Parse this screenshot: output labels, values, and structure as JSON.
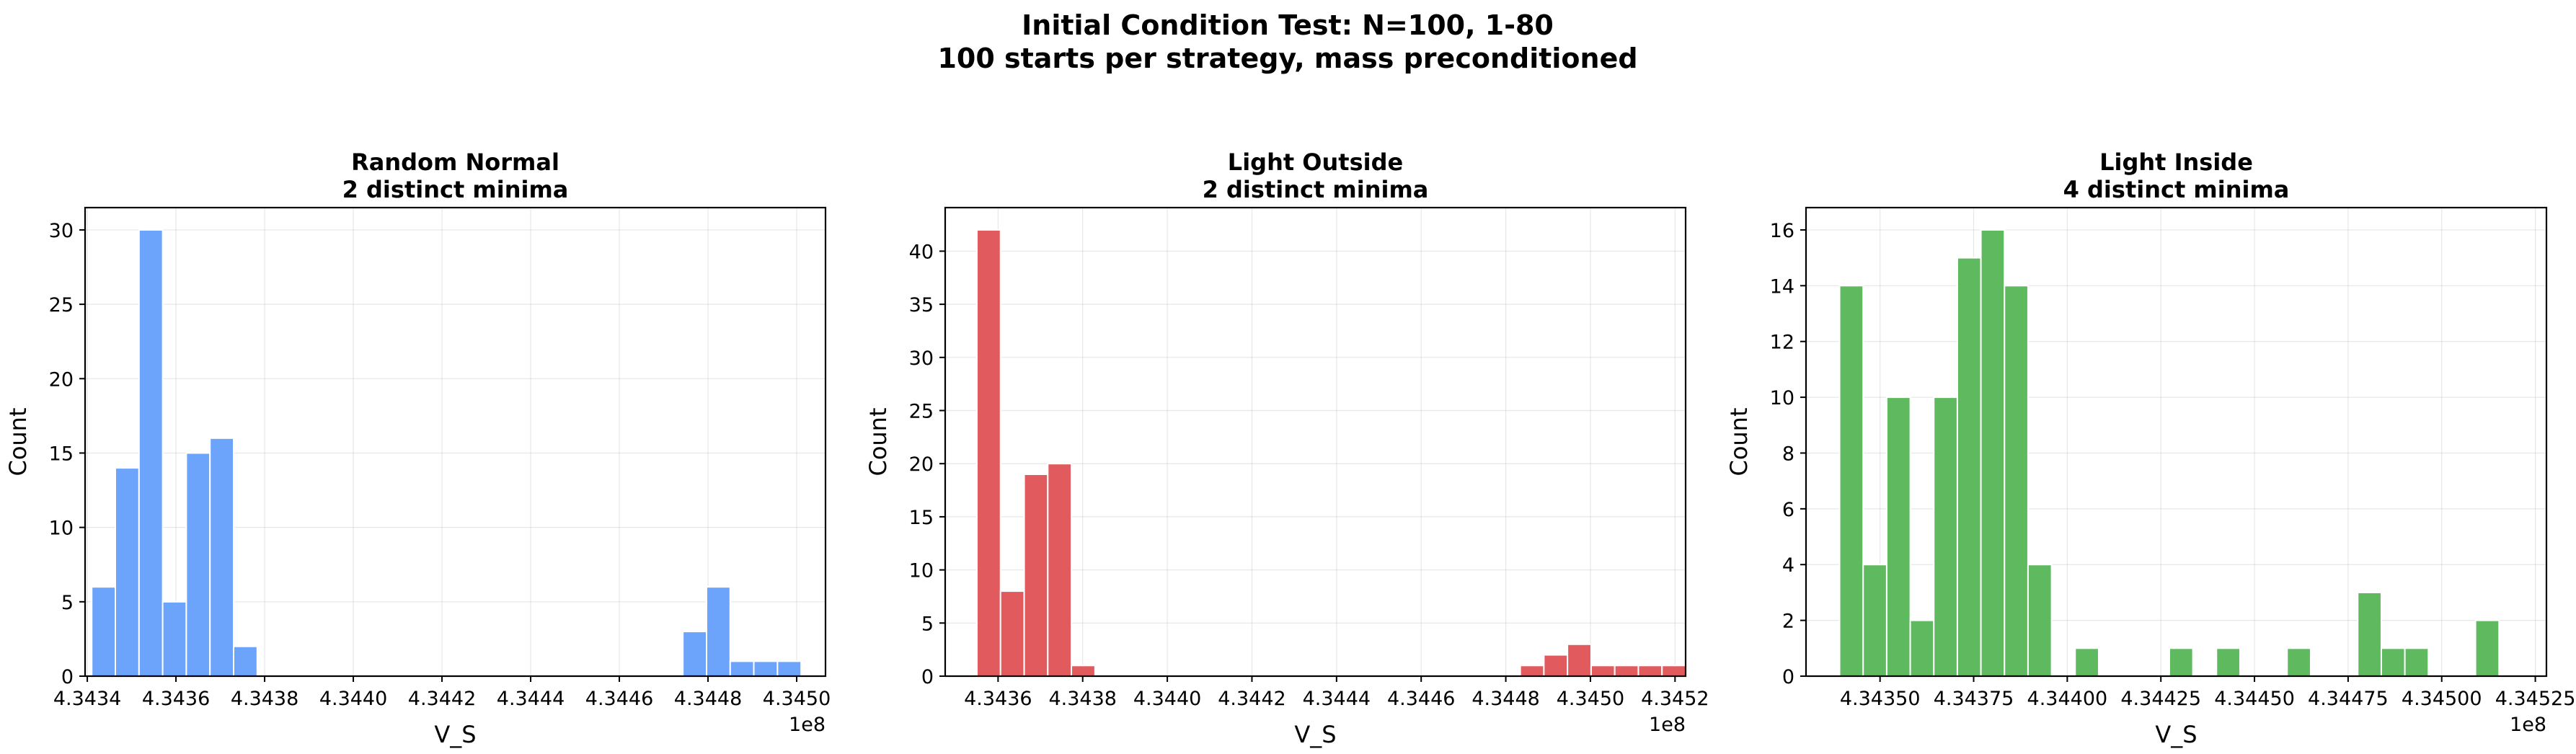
{
  "figure": {
    "title_line1": "Initial Condition Test: N=100, 1-80",
    "title_line2": "100 starts per strategy, mass preconditioned"
  },
  "chart_data": [
    {
      "type": "bar",
      "title_line1": "Random Normal",
      "title_line2": "2 distinct minima",
      "xlabel": "V_S",
      "ylabel": "Count",
      "color": "#6ca3fb",
      "x_offset_label": "1e8",
      "xlim": [
        4.343395,
        4.345065
      ],
      "ylim": [
        0,
        31.5
      ],
      "xticks": [
        4.3434,
        4.3436,
        4.3438,
        4.344,
        4.3442,
        4.3444,
        4.3446,
        4.3448,
        4.345
      ],
      "xtick_labels": [
        "4.3434",
        "4.3436",
        "4.3438",
        "4.3440",
        "4.3442",
        "4.3444",
        "4.3446",
        "4.3448",
        "4.3450"
      ],
      "yticks": [
        0,
        5,
        10,
        15,
        20,
        25,
        30
      ],
      "ytick_labels": [
        "0",
        "5",
        "10",
        "15",
        "20",
        "25",
        "30"
      ],
      "bin_edges": [
        4.34341,
        4.3434633,
        4.3435167,
        4.34357,
        4.3436233,
        4.3436767,
        4.34373,
        4.3437833,
        4.3438367,
        4.34389,
        4.3439433,
        4.3439967,
        4.34405,
        4.3441033,
        4.3441567,
        4.34421,
        4.3442633,
        4.3443167,
        4.34437,
        4.3444233,
        4.3444767,
        4.34453,
        4.3445833,
        4.3446367,
        4.34469,
        4.3447433,
        4.3447967,
        4.34485,
        4.3449033,
        4.3449567,
        4.34501
      ],
      "counts": [
        6,
        14,
        30,
        5,
        15,
        16,
        2,
        0,
        0,
        0,
        0,
        0,
        0,
        0,
        0,
        0,
        0,
        0,
        0,
        0,
        0,
        0,
        0,
        0,
        0,
        3,
        6,
        1,
        1,
        1
      ]
    },
    {
      "type": "bar",
      "title_line1": "Light Outside",
      "title_line2": "2 distinct minima",
      "xlabel": "V_S",
      "ylabel": "Count",
      "color": "#e05a5e",
      "x_offset_label": "1e8",
      "xlim": [
        4.343475,
        4.345225
      ],
      "ylim": [
        0,
        44.1
      ],
      "xticks": [
        4.3436,
        4.3438,
        4.344,
        4.3442,
        4.3444,
        4.3446,
        4.3448,
        4.345,
        4.3452
      ],
      "xtick_labels": [
        "4.3436",
        "4.3438",
        "4.3440",
        "4.3442",
        "4.3444",
        "4.3446",
        "4.3448",
        "4.3450",
        "4.3452"
      ],
      "yticks": [
        0,
        5,
        10,
        15,
        20,
        25,
        30,
        35,
        40
      ],
      "ytick_labels": [
        "0",
        "5",
        "10",
        "15",
        "20",
        "25",
        "30",
        "35",
        "40"
      ],
      "bin_edges": [
        4.34355,
        4.3436058,
        4.3436617,
        4.3437175,
        4.3437733,
        4.3438292,
        4.343885,
        4.3439408,
        4.3439967,
        4.3440525,
        4.3441083,
        4.3441642,
        4.34422,
        4.3442758,
        4.3443317,
        4.3443875,
        4.3444433,
        4.3444992,
        4.344555,
        4.3446108,
        4.3446667,
        4.3447225,
        4.3447783,
        4.3448342,
        4.34489,
        4.3449458,
        4.3450017,
        4.3450575,
        4.3451133,
        4.3451692,
        4.345225
      ],
      "counts": [
        42,
        8,
        19,
        20,
        1,
        0,
        0,
        0,
        0,
        0,
        0,
        0,
        0,
        0,
        0,
        0,
        0,
        0,
        0,
        0,
        0,
        0,
        0,
        1,
        2,
        3,
        1,
        1,
        1,
        1
      ]
    },
    {
      "type": "bar",
      "title_line1": "Light Inside",
      "title_line2": "4 distinct minima",
      "xlabel": "V_S",
      "ylabel": "Count",
      "color": "#5fb95f",
      "x_offset_label": "1e8",
      "xlim": [
        4.3433023,
        4.3452797
      ],
      "ylim": [
        0,
        16.8
      ],
      "xticks": [
        4.3435,
        4.34375,
        4.344,
        4.34425,
        4.3445,
        4.34475,
        4.345,
        4.34525
      ],
      "xtick_labels": [
        "4.34350",
        "4.34375",
        "4.34400",
        "4.34425",
        "4.34450",
        "4.34475",
        "4.34500",
        "4.34525"
      ],
      "yticks": [
        0,
        2,
        4,
        6,
        8,
        10,
        12,
        14,
        16
      ],
      "ytick_labels": [
        "0",
        "2",
        "4",
        "6",
        "8",
        "10",
        "12",
        "14",
        "16"
      ],
      "bin_edges": [
        4.343392,
        4.3434549,
        4.3435178,
        4.3435807,
        4.3436436,
        4.3437065,
        4.3437694,
        4.3438323,
        4.3438952,
        4.3439581,
        4.344021,
        4.3440839,
        4.3441468,
        4.3442097,
        4.3442726,
        4.3443355,
        4.3443984,
        4.3444613,
        4.3445242,
        4.3445871,
        4.34465,
        4.3447129,
        4.3447758,
        4.3448387,
        4.3449016,
        4.3449645,
        4.3450274,
        4.3450903,
        4.3451532,
        4.3452161,
        4.345279
      ],
      "counts": [
        14,
        4,
        10,
        2,
        10,
        15,
        16,
        14,
        4,
        0,
        1,
        0,
        0,
        0,
        1,
        0,
        1,
        0,
        0,
        1,
        0,
        0,
        3,
        1,
        1,
        0,
        0,
        2,
        0,
        0
      ]
    }
  ]
}
